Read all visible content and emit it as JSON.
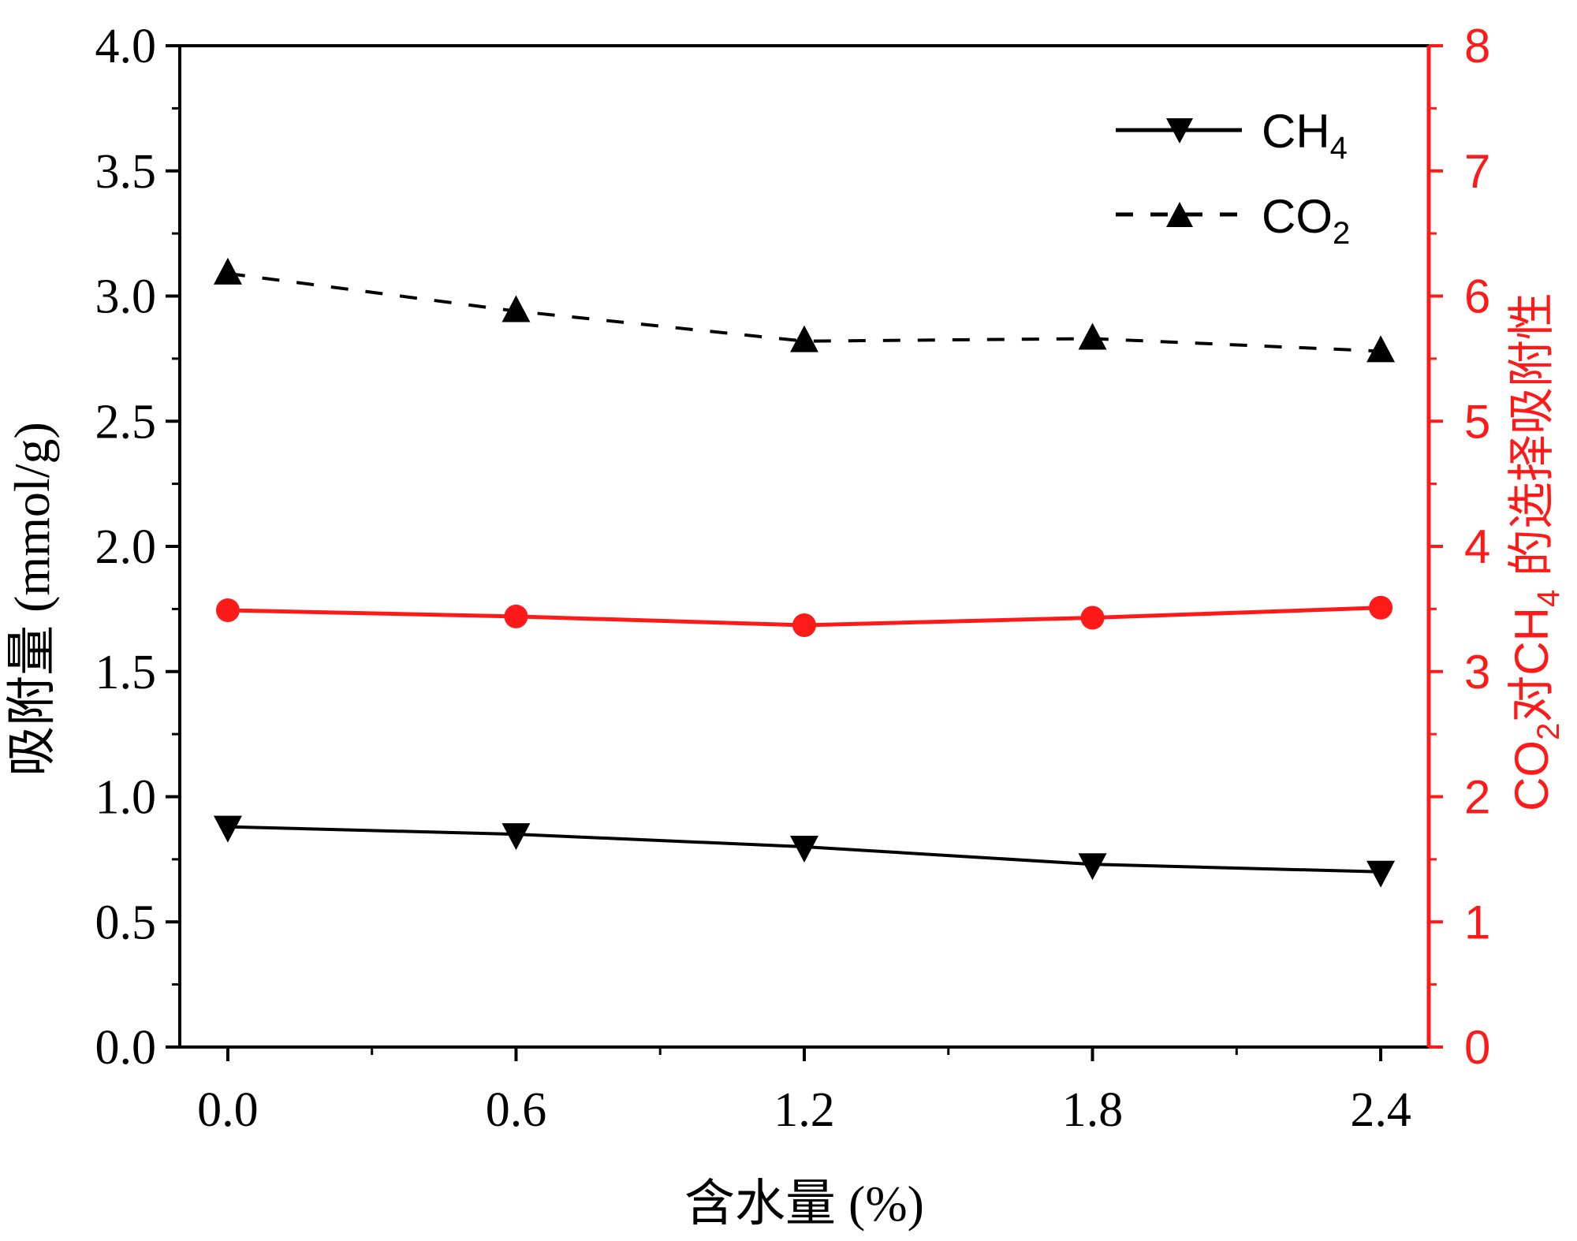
{
  "chart_data": {
    "type": "line",
    "x": [
      0.0,
      0.6,
      1.2,
      1.8,
      2.4
    ],
    "x_tick_labels": [
      "0.0",
      "0.6",
      "1.2",
      "1.8",
      "2.4"
    ],
    "xlim": [
      -0.1,
      2.5
    ],
    "xlabel": "含水量 (%)",
    "ylabel": "吸附量 (mmol/g)",
    "ylim": [
      0,
      4
    ],
    "y_tick_labels": [
      "0.0",
      "0.5",
      "1.0",
      "1.5",
      "2.0",
      "2.5",
      "3.0",
      "3.5",
      "4.0"
    ],
    "y2label": {
      "prefix": "CO",
      "sub1": "2",
      "middle": "对CH",
      "sub2": "4",
      "suffix": " 的选择吸附性"
    },
    "y2lim": [
      0,
      8
    ],
    "y2_tick_labels": [
      "0",
      "1",
      "2",
      "3",
      "4",
      "5",
      "6",
      "7",
      "8"
    ],
    "right_axis_color": "#ff1a1a",
    "series": [
      {
        "name": "CH4",
        "legend_main": "CH",
        "legend_sub": "4",
        "axis": "left",
        "values": [
          0.88,
          0.85,
          0.8,
          0.73,
          0.7
        ],
        "color": "#000000",
        "line_style": "solid",
        "marker": "triangle-down"
      },
      {
        "name": "CO2",
        "legend_main": "CO",
        "legend_sub": "2",
        "axis": "left",
        "values": [
          3.09,
          2.94,
          2.82,
          2.83,
          2.78
        ],
        "color": "#000000",
        "line_style": "dashed",
        "marker": "triangle-up"
      },
      {
        "name": "CO2/CH4 selectivity",
        "axis": "right",
        "values": [
          3.49,
          3.44,
          3.37,
          3.43,
          3.51
        ],
        "color": "#ff1a1a",
        "line_style": "solid",
        "marker": "circle"
      }
    ],
    "legend_position": "top-right"
  }
}
